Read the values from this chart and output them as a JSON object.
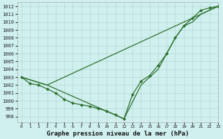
{
  "title": "Graphe pression niveau de la mer (hPa)",
  "background_color": "#d0f0f0",
  "grid_color": "#b0d8cc",
  "line_color": "#2d6e2d",
  "xlim": [
    -0.5,
    23
  ],
  "ylim": [
    997.3,
    1012.5
  ],
  "yticks": [
    998,
    999,
    1000,
    1001,
    1002,
    1003,
    1004,
    1005,
    1006,
    1007,
    1008,
    1009,
    1010,
    1011,
    1012
  ],
  "xticks": [
    0,
    1,
    2,
    3,
    4,
    5,
    6,
    7,
    8,
    9,
    10,
    11,
    12,
    13,
    14,
    15,
    16,
    17,
    18,
    19,
    20,
    21,
    22,
    23
  ],
  "series": [
    {
      "x": [
        0,
        1,
        2,
        3,
        4,
        5,
        6,
        7,
        8,
        9,
        10,
        11,
        12,
        13,
        14,
        15,
        16,
        17,
        18,
        19,
        20,
        21,
        22,
        23
      ],
      "y": [
        1003,
        1002.2,
        1002,
        1001.5,
        1001,
        1000.2,
        999.7,
        999.5,
        999.3,
        999.0,
        998.7,
        998.2,
        997.7,
        1000.8,
        1002.5,
        1003.2,
        1004.5,
        1006.0,
        1008.0,
        1009.5,
        1010.5,
        1011.5,
        1011.8,
        1012
      ],
      "marker": true
    },
    {
      "x": [
        0,
        3,
        23
      ],
      "y": [
        1003,
        1002,
        1012
      ],
      "marker": false
    },
    {
      "x": [
        0,
        3,
        12,
        14,
        16,
        18,
        19,
        20,
        21,
        22,
        23
      ],
      "y": [
        1003,
        1002,
        997.7,
        1002.0,
        1004.0,
        1008.0,
        1009.5,
        1010.0,
        1011.0,
        1011.5,
        1012
      ],
      "marker": false
    }
  ]
}
